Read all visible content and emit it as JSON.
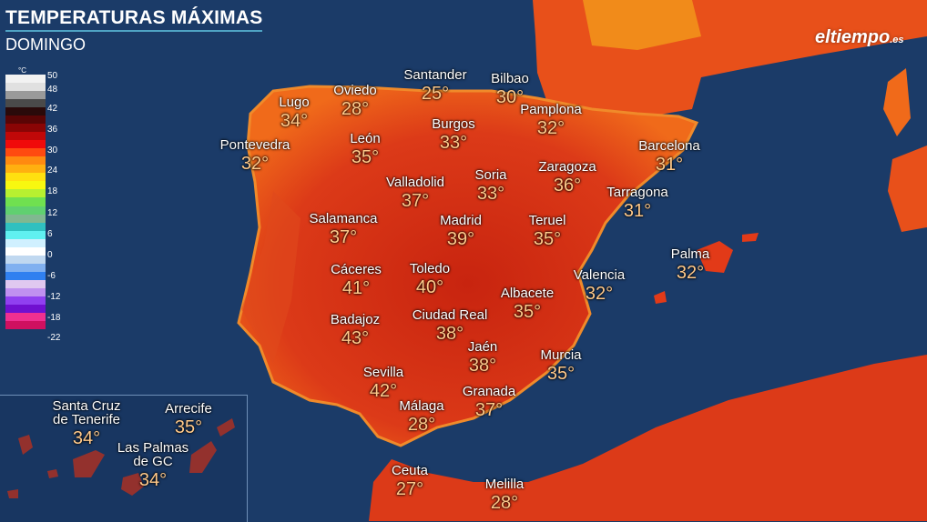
{
  "header": {
    "title": "TEMPERATURAS MÁXIMAS",
    "subtitle": "DOMINGO"
  },
  "logo": {
    "text": "eltiempo",
    "suffix": ".es"
  },
  "legend": {
    "unit": "°C",
    "ticks": [
      "50",
      "48",
      "42",
      "36",
      "30",
      "24",
      "18",
      "12",
      "6",
      "0",
      "-6",
      "-12",
      "-18",
      "-22"
    ],
    "colors": [
      "#f2f2f2",
      "#e0e0e0",
      "#9a9a9a",
      "#4a4a4a",
      "#2a0a0a",
      "#5a0505",
      "#8a0505",
      "#c00808",
      "#f00a0a",
      "#ff4a10",
      "#ff8a10",
      "#ffb010",
      "#ffe010",
      "#f8f810",
      "#b8f030",
      "#70e050",
      "#60d070",
      "#80b890",
      "#30c0c0",
      "#60f0f0",
      "#d0f0ff",
      "#ffffff",
      "#c0d8f0",
      "#80b0f0",
      "#3080f0",
      "#e0c8f0",
      "#c090f0",
      "#9040f0",
      "#7010d0",
      "#f03090",
      "#d01060"
    ]
  },
  "colors": {
    "sea": "#1a3a66",
    "land": "#d6321a",
    "temp_text": "#ffc98a"
  },
  "cities": [
    {
      "name": "Lugo",
      "temp": "34°"
    },
    {
      "name": "Oviedo",
      "temp": "28°"
    },
    {
      "name": "Santander",
      "temp": "25°"
    },
    {
      "name": "Bilbao",
      "temp": "30°"
    },
    {
      "name": "Pamplona",
      "temp": "32°"
    },
    {
      "name": "Burgos",
      "temp": "33°"
    },
    {
      "name": "León",
      "temp": "35°"
    },
    {
      "name": "Pontevedra",
      "temp": "32°"
    },
    {
      "name": "Barcelona",
      "temp": "31°"
    },
    {
      "name": "Zaragoza",
      "temp": "36°"
    },
    {
      "name": "Soria",
      "temp": "33°"
    },
    {
      "name": "Valladolid",
      "temp": "37°"
    },
    {
      "name": "Tarragona",
      "temp": "31°"
    },
    {
      "name": "Salamanca",
      "temp": "37°"
    },
    {
      "name": "Madrid",
      "temp": "39°"
    },
    {
      "name": "Teruel",
      "temp": "35°"
    },
    {
      "name": "Palma",
      "temp": "32°"
    },
    {
      "name": "Cáceres",
      "temp": "41°"
    },
    {
      "name": "Toledo",
      "temp": "40°"
    },
    {
      "name": "Valencia",
      "temp": "32°"
    },
    {
      "name": "Albacete",
      "temp": "35°"
    },
    {
      "name": "Badajoz",
      "temp": "43°"
    },
    {
      "name": "Ciudad Real",
      "temp": "38°"
    },
    {
      "name": "Jaén",
      "temp": "38°"
    },
    {
      "name": "Murcia",
      "temp": "35°"
    },
    {
      "name": "Sevilla",
      "temp": "42°"
    },
    {
      "name": "Málaga",
      "temp": "28°"
    },
    {
      "name": "Granada",
      "temp": "37°"
    },
    {
      "name": "Ceuta",
      "temp": "27°"
    },
    {
      "name": "Melilla",
      "temp": "28°"
    }
  ],
  "canarias": [
    {
      "name": "Santa Cruz de Tenerife",
      "line1": "Santa Cruz",
      "line2": "de Tenerife",
      "temp": "34°"
    },
    {
      "name": "Arrecife",
      "line1": "Arrecife",
      "line2": "",
      "temp": "35°"
    },
    {
      "name": "Las Palmas de GC",
      "line1": "Las Palmas",
      "line2": "de GC",
      "temp": "34°"
    }
  ]
}
